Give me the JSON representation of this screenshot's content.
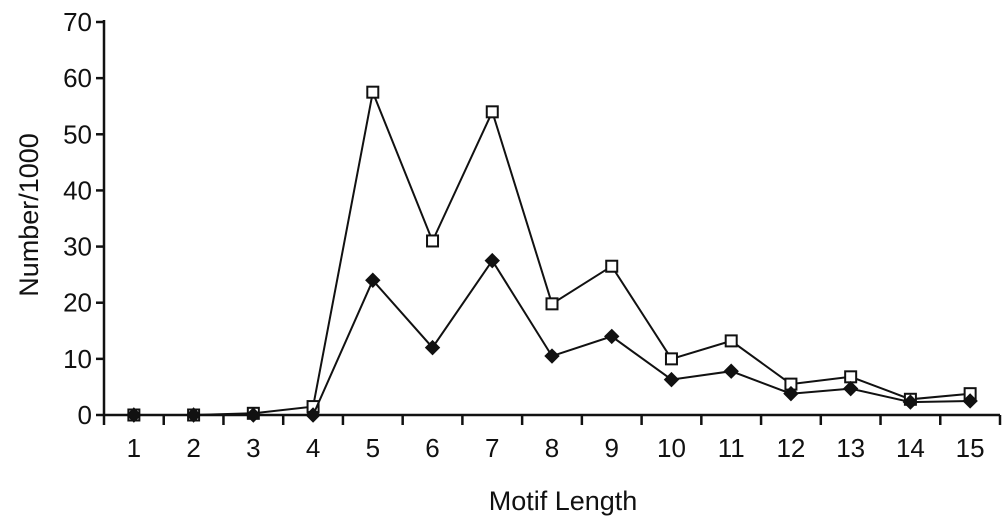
{
  "chart_data": {
    "type": "line",
    "title": "",
    "xlabel": "Motif Length",
    "ylabel": "Number/1000",
    "x": [
      1,
      2,
      3,
      4,
      5,
      6,
      7,
      8,
      9,
      10,
      11,
      12,
      13,
      14,
      15
    ],
    "xlim": [
      0.5,
      15.5
    ],
    "ylim": [
      0,
      70
    ],
    "yticks": [
      0,
      10,
      20,
      30,
      40,
      50,
      60,
      70
    ],
    "grid": false,
    "legend": "none",
    "series": [
      {
        "marker": "open-square",
        "color": "#111111",
        "values": [
          0,
          0,
          0.3,
          1.5,
          57.5,
          31,
          54,
          19.8,
          26.5,
          10,
          13.2,
          5.5,
          6.8,
          2.8,
          3.8
        ]
      },
      {
        "marker": "filled-diamond",
        "color": "#111111",
        "values": [
          0,
          0,
          0,
          0,
          24,
          12,
          27.5,
          10.5,
          14,
          6.3,
          7.8,
          3.8,
          4.7,
          2.3,
          2.5
        ]
      }
    ]
  }
}
